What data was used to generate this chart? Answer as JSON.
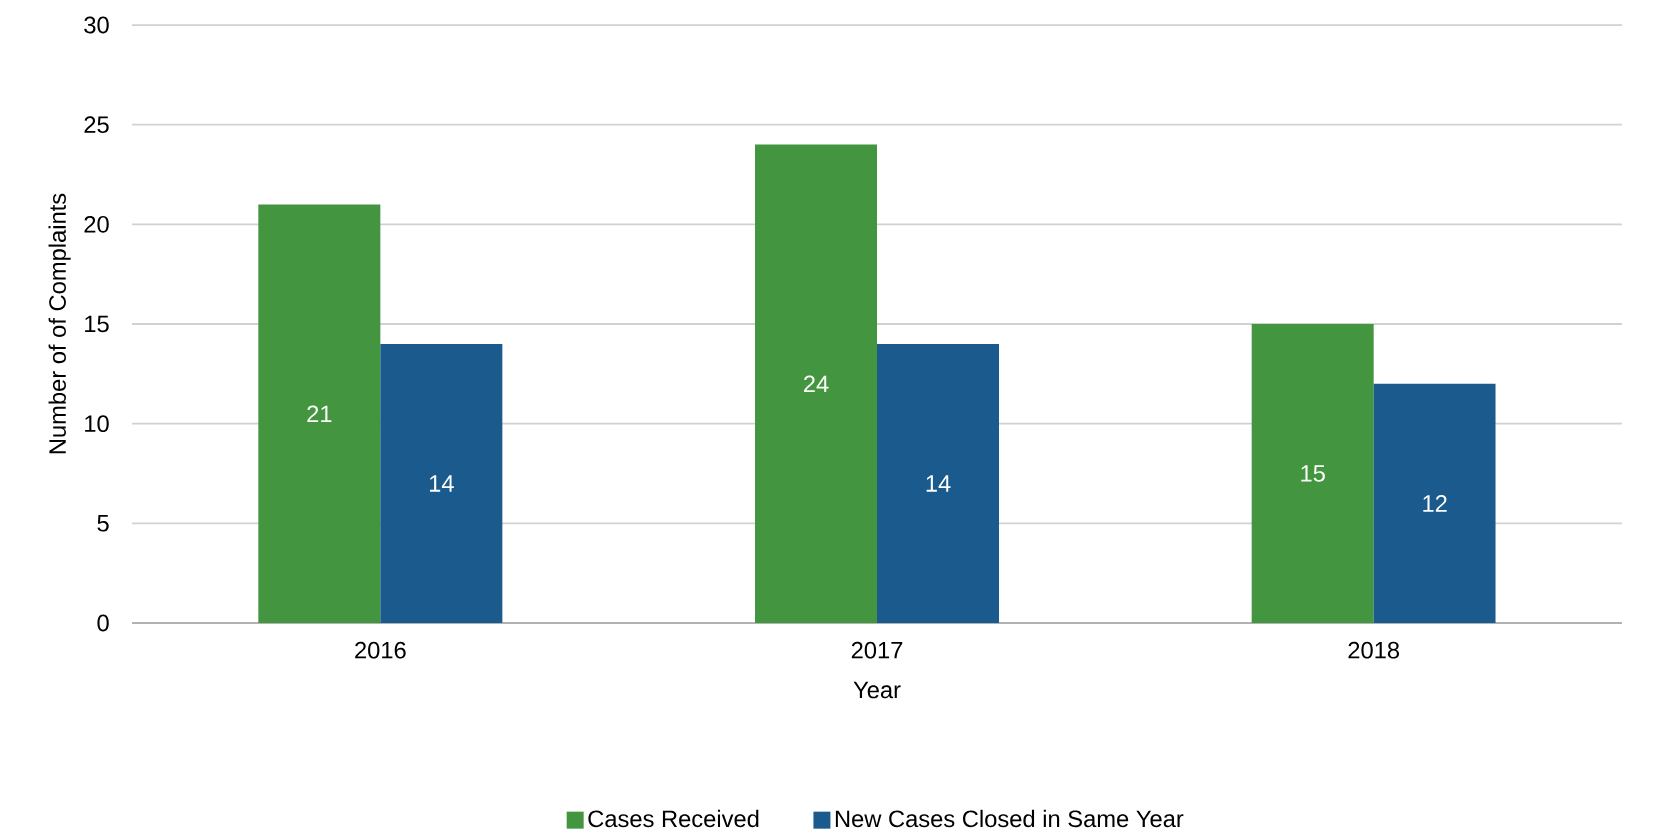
{
  "chart_data": {
    "type": "bar",
    "xlabel": "Year",
    "ylabel": "Number of of Complaints",
    "categories": [
      "2016",
      "2017",
      "2018"
    ],
    "series": [
      {
        "name": "Cases Received",
        "color": "#43963f",
        "values": [
          21,
          24,
          15
        ]
      },
      {
        "name": "New Cases Closed in Same Year",
        "color": "#1a5a8c",
        "values": [
          14,
          14,
          12
        ]
      }
    ],
    "ylim": [
      0,
      30
    ],
    "yticks": [
      0,
      5,
      10,
      15,
      20,
      25,
      30
    ],
    "grid": "y",
    "legend": "bottom",
    "data_labels": true
  }
}
